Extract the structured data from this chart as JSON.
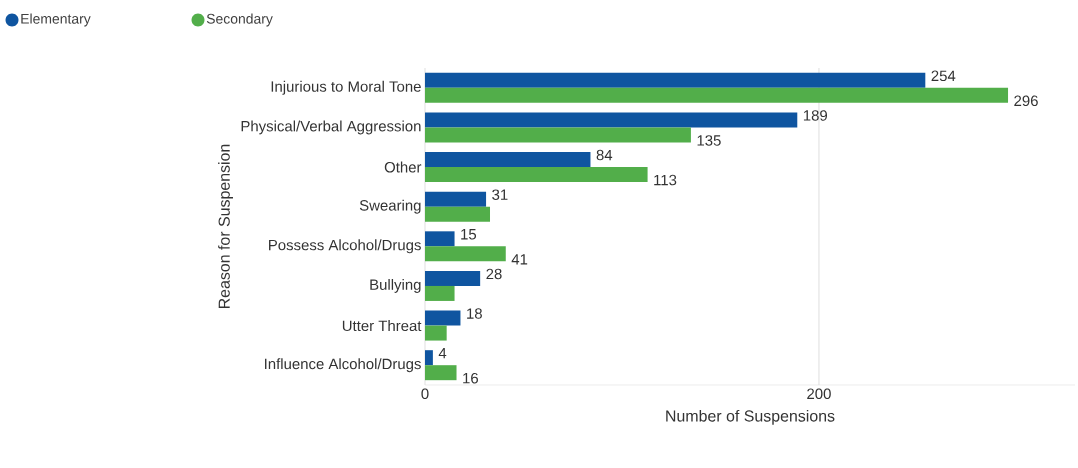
{
  "chart_data": {
    "type": "bar",
    "orientation": "horizontal",
    "xlabel": "Number of Suspensions",
    "ylabel": "Reason for Suspension",
    "categories": [
      "Injurious to Moral Tone",
      "Physical/Verbal Aggression",
      "Other",
      "Swearing",
      "Possess Alcohol/Drugs",
      "Bullying",
      "Utter Threat",
      "Influence Alcohol/Drugs"
    ],
    "series": [
      {
        "name": "Elementary",
        "color": "#0f55a0",
        "values": [
          254,
          189,
          84,
          31,
          15,
          28,
          18,
          4
        ],
        "value_labels": [
          "254",
          "189",
          "84",
          "31",
          "15",
          "28",
          "18",
          "4"
        ]
      },
      {
        "name": "Secondary",
        "color": "#52ae4a",
        "values": [
          296,
          135,
          113,
          33,
          41,
          15,
          11,
          16
        ],
        "value_labels": [
          "296",
          "135",
          "113",
          null,
          "41",
          null,
          null,
          "16"
        ]
      }
    ],
    "xlim": [
      0,
      330
    ],
    "xticks": [
      0,
      200
    ],
    "grid": "x",
    "legend": "top left"
  }
}
